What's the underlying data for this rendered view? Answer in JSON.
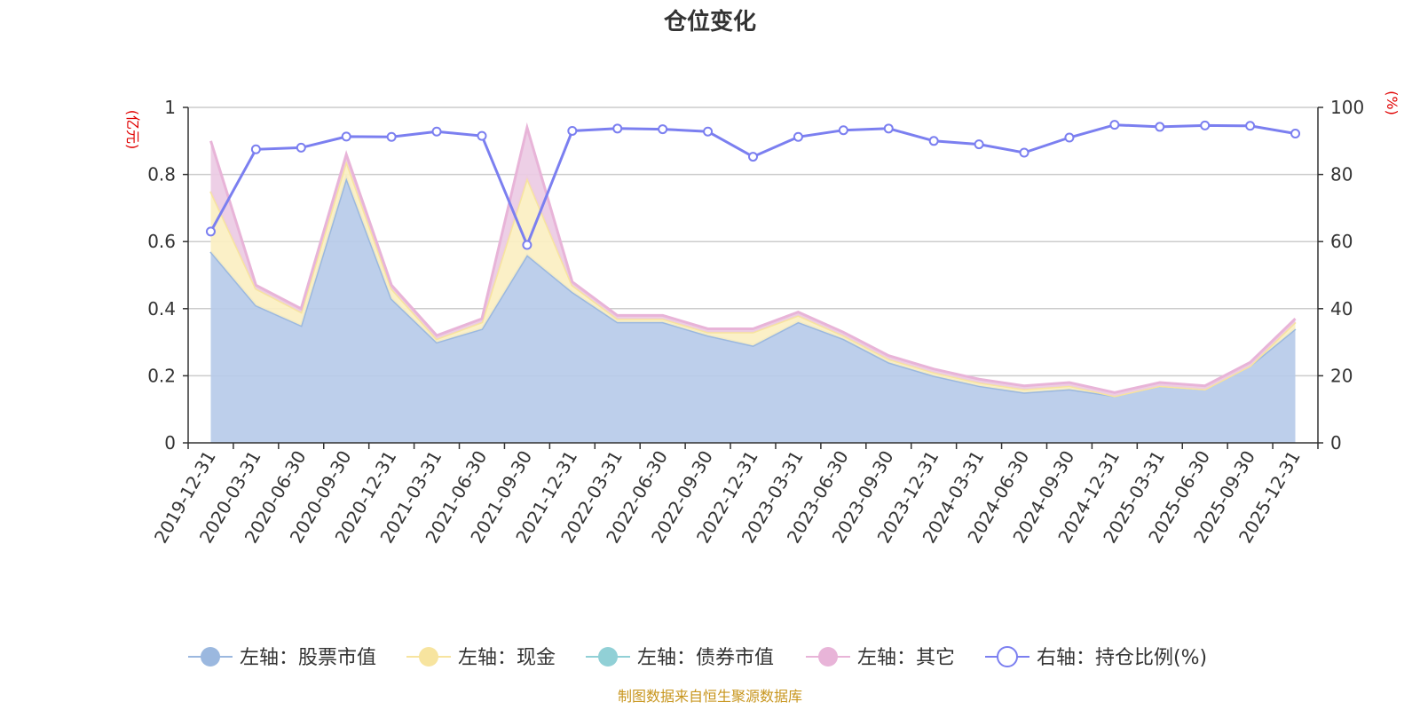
{
  "chart_data": {
    "type": "area",
    "title": "仓位变化",
    "source": "制图数据来自恒生聚源数据库",
    "left_axis": {
      "unit": "(亿元)",
      "ylim": [
        0,
        1
      ],
      "ticks": [
        "0",
        "0.2",
        "0.4",
        "0.6",
        "0.8",
        "1"
      ]
    },
    "right_axis": {
      "unit": "(%)",
      "ylim": [
        0,
        100
      ],
      "ticks": [
        "0",
        "20",
        "40",
        "60",
        "80",
        "100"
      ]
    },
    "categories": [
      "2019-12-31",
      "2020-03-31",
      "2020-06-30",
      "2020-09-30",
      "2020-12-31",
      "2021-03-31",
      "2021-06-30",
      "2021-09-30",
      "2021-12-31",
      "2022-03-31",
      "2022-06-30",
      "2022-09-30",
      "2022-12-31",
      "2023-03-31",
      "2023-06-30",
      "2023-09-30",
      "2023-12-31",
      "2024-03-31",
      "2024-06-30",
      "2024-09-30",
      "2024-12-31",
      "2025-03-31",
      "2025-06-30",
      "2025-09-30",
      "2025-12-31"
    ],
    "series": [
      {
        "name": "左轴：股票市值",
        "axis": "left",
        "stack": true,
        "color": "#9bb8df",
        "fill": "#b7cbe9",
        "values": [
          0.57,
          0.41,
          0.35,
          0.79,
          0.43,
          0.3,
          0.34,
          0.56,
          0.45,
          0.36,
          0.36,
          0.32,
          0.29,
          0.36,
          0.31,
          0.24,
          0.2,
          0.17,
          0.15,
          0.16,
          0.14,
          0.17,
          0.16,
          0.23,
          0.34
        ]
      },
      {
        "name": "左轴：现金",
        "axis": "left",
        "stack": true,
        "color": "#f7e49f",
        "fill": "#fbefc2",
        "values": [
          0.18,
          0.05,
          0.04,
          0.05,
          0.03,
          0.01,
          0.02,
          0.23,
          0.02,
          0.01,
          0.01,
          0.01,
          0.04,
          0.02,
          0.01,
          0.01,
          0.01,
          0.01,
          0.01,
          0.01,
          0.0,
          0.0,
          0.0,
          0.0,
          0.02
        ]
      },
      {
        "name": "左轴：债券市值",
        "axis": "left",
        "stack": true,
        "color": "#91d0d6",
        "fill": "#b5e0e4",
        "values": [
          0,
          0,
          0,
          0,
          0,
          0,
          0,
          0,
          0,
          0,
          0,
          0,
          0,
          0,
          0,
          0,
          0,
          0,
          0,
          0,
          0,
          0,
          0,
          0,
          0
        ]
      },
      {
        "name": "左轴：其它",
        "axis": "left",
        "stack": true,
        "color": "#e8b4d8",
        "fill": "#eccbe4",
        "values": [
          0.15,
          0.01,
          0.01,
          0.02,
          0.01,
          0.01,
          0.01,
          0.15,
          0.01,
          0.01,
          0.01,
          0.01,
          0.01,
          0.01,
          0.01,
          0.01,
          0.01,
          0.01,
          0.01,
          0.01,
          0.01,
          0.01,
          0.01,
          0.01,
          0.01
        ]
      },
      {
        "name": "右轴：持仓比例(%)",
        "axis": "right",
        "type": "line",
        "color": "#7b7ff0",
        "values": [
          63,
          87.5,
          88,
          91.3,
          91.2,
          92.8,
          91.5,
          59,
          93,
          93.7,
          93.5,
          92.8,
          85.3,
          91.2,
          93.2,
          93.7,
          90,
          89,
          86.5,
          91,
          94.8,
          94.2,
          94.6,
          94.5,
          92.2
        ]
      }
    ]
  }
}
